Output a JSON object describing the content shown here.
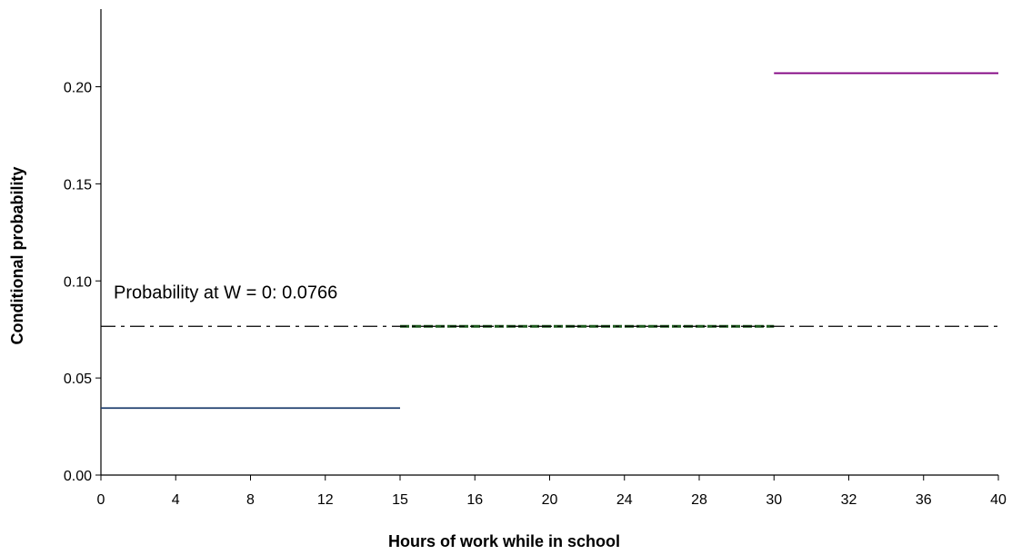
{
  "chart_data": {
    "type": "line",
    "title": "",
    "xlabel": "Hours of work while in school",
    "ylabel": "Conditional probability",
    "ylim": [
      0,
      0.24
    ],
    "x_tick_labels": [
      "0",
      "4",
      "8",
      "12",
      "15",
      "16",
      "20",
      "24",
      "28",
      "30",
      "32",
      "36",
      "40"
    ],
    "y_tick_labels": [
      "0.00",
      "0.05",
      "0.10",
      "0.15",
      "0.20"
    ],
    "y_ticks": [
      0,
      0.05,
      0.1,
      0.15,
      0.2
    ],
    "grid": false,
    "series": [
      {
        "segment": [
          0,
          15
        ],
        "value": 0.0345,
        "color": "#1f3f6e",
        "style": "solid"
      },
      {
        "segment": [
          15,
          30
        ],
        "value": 0.0766,
        "color": "#1e5a1e",
        "style": "dashed"
      },
      {
        "segment": [
          30,
          40
        ],
        "value": 0.207,
        "color": "#800080",
        "style": "solid"
      }
    ],
    "reference_line": {
      "value": 0.0766,
      "color": "#000000",
      "style": "dash-dot"
    },
    "annotation": "Probability at W = 0: 0.0766"
  }
}
